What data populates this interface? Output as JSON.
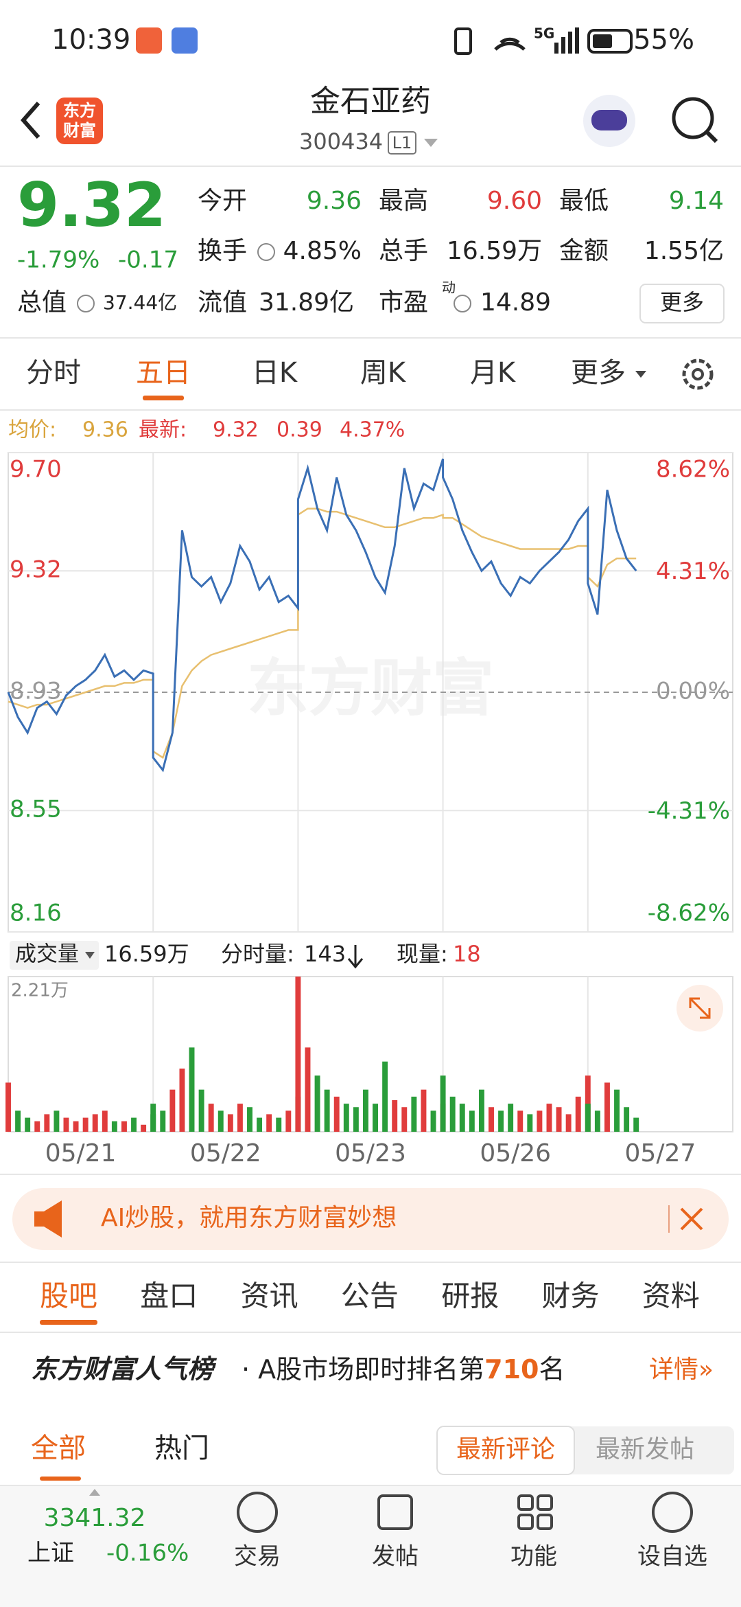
{
  "status_bar": {
    "time": "10:39",
    "network": "5G",
    "battery": "55%"
  },
  "header": {
    "logo": [
      "东方",
      "财富"
    ],
    "title": "金石亚药",
    "code": "300434",
    "level": "L1"
  },
  "quote": {
    "price": "9.32",
    "change_pct": "-1.79%",
    "change": "-0.17",
    "rows": [
      [
        {
          "label": "今开",
          "value": "9.36",
          "color": "#2a9d3a"
        },
        {
          "label": "最高",
          "value": "9.60",
          "color": "#e03c3c"
        },
        {
          "label": "最低",
          "value": "9.14",
          "color": "#2a9d3a"
        }
      ],
      [
        {
          "label": "换手",
          "value": "4.85%"
        },
        {
          "label": "总手",
          "value": "16.59万"
        },
        {
          "label": "金额",
          "value": "1.55亿"
        }
      ],
      [
        {
          "label": "总值",
          "value": "37.44亿"
        },
        {
          "label": "流值",
          "value": "31.89亿"
        },
        {
          "label": "市盈",
          "sup": "动",
          "value": "14.89"
        }
      ]
    ],
    "more_button": "更多"
  },
  "tabs": [
    "分时",
    "五日",
    "日K",
    "周K",
    "月K",
    "更多"
  ],
  "chart_data": [
    {
      "type": "line",
      "watermark": "东方财富",
      "legend": [
        {
          "label": "均价:",
          "value": 9.36,
          "color": "#d9a43c"
        },
        {
          "label": "最新:",
          "value": 9.32,
          "color": "#e03c3c"
        },
        {
          "value": 0.39,
          "color": "#e03c3c"
        },
        {
          "value": {
            "value": 4.37,
            "label": "4.37%"
          },
          "color": "#e03c3c"
        }
      ],
      "ylim": [
        8.16,
        9.7
      ],
      "yticks": [
        {
          "value": 9.7,
          "label": "9.70"
        },
        9.32,
        8.93,
        8.55,
        8.16
      ],
      "y2lim": [
        -8.62,
        8.62
      ],
      "y2ticks": [
        {
          "value": 8.62,
          "label": "8.62%"
        },
        {
          "value": 4.31,
          "label": "4.31%"
        },
        {
          "value": 0,
          "label": "0.00%"
        },
        {
          "value": -4.31,
          "label": "-4.31%"
        },
        {
          "value": -8.62,
          "label": "-8.62%"
        }
      ],
      "grid": true,
      "up_color": "#e03c3c",
      "down_color": "#2a9d3a",
      "series": [
        {
          "color": "#3a6fb5",
          "values": [
            [
              8.93,
              8.85,
              8.8,
              8.88,
              8.9,
              8.86,
              8.92,
              8.95,
              8.97,
              9.0,
              9.05,
              8.98,
              9.0,
              8.97,
              9.0,
              8.99
            ],
            [
              8.72,
              8.68,
              8.8,
              9.45,
              9.3,
              9.27,
              9.3,
              9.22,
              9.28,
              9.4,
              9.35,
              9.26,
              9.3,
              9.22,
              9.24,
              9.2
            ],
            [
              9.55,
              9.65,
              9.52,
              9.45,
              9.62,
              9.5,
              9.45,
              9.38,
              9.3,
              9.25,
              9.4,
              9.65,
              9.52,
              9.6,
              9.58,
              9.68
            ],
            [
              9.62,
              9.55,
              9.45,
              9.38,
              9.32,
              9.35,
              9.28,
              9.24,
              9.3,
              9.28,
              9.32,
              9.35,
              9.38,
              9.42,
              9.48,
              9.52
            ],
            [
              9.28,
              9.18,
              9.58,
              9.45,
              9.36,
              9.32
            ]
          ]
        },
        {
          "color": "#e8c070",
          "values": [
            [
              8.9,
              8.89,
              8.88,
              8.89,
              8.89,
              8.9,
              8.91,
              8.92,
              8.93,
              8.94,
              8.95,
              8.95,
              8.96,
              8.96,
              8.97,
              8.97
            ],
            [
              8.74,
              8.72,
              8.8,
              8.95,
              9.0,
              9.03,
              9.05,
              9.06,
              9.07,
              9.08,
              9.09,
              9.1,
              9.11,
              9.12,
              9.13,
              9.13
            ],
            [
              9.5,
              9.52,
              9.52,
              9.51,
              9.51,
              9.5,
              9.49,
              9.48,
              9.47,
              9.46,
              9.46,
              9.47,
              9.48,
              9.49,
              9.49,
              9.5
            ],
            [
              9.49,
              9.49,
              9.47,
              9.45,
              9.43,
              9.42,
              9.41,
              9.4,
              9.39,
              9.39,
              9.39,
              9.39,
              9.39,
              9.39,
              9.4,
              9.4
            ],
            [
              9.3,
              9.27,
              9.34,
              9.36,
              9.36,
              9.36
            ]
          ]
        }
      ]
    },
    {
      "type": "bar",
      "categories": [
        "05/21",
        "05/22",
        "05/23",
        "05/26",
        "05/27"
      ],
      "ylim": [
        0,
        22100
      ],
      "yticks": [
        {
          "value": 22100,
          "label": "2.21万"
        }
      ],
      "values": [
        [
          7000,
          3000,
          2000,
          1500,
          2500,
          3000,
          2000,
          1500,
          2000,
          2500,
          3000,
          1500,
          1500,
          2000,
          1000,
          2500
        ],
        [
          4000,
          3000,
          6000,
          9000,
          12000,
          6000,
          4000,
          3000,
          2500,
          4000,
          3500,
          2000,
          2500,
          2000,
          3000,
          5000
        ],
        [
          22100,
          12000,
          8000,
          6000,
          5000,
          4000,
          3500,
          6000,
          4000,
          10000,
          4500,
          3500,
          5000,
          6000,
          3000,
          4000
        ],
        [
          8000,
          5000,
          4000,
          3000,
          6000,
          3500,
          3000,
          4000,
          3000,
          2500,
          3000,
          4000,
          3500,
          2500,
          5000,
          8000
        ],
        [
          4000,
          3000,
          7000,
          6000,
          3500,
          2000
        ]
      ]
    }
  ],
  "volume_header": {
    "label": "成交量",
    "total": "16.59万",
    "minute_label": "分时量:",
    "minute_value": "143",
    "current_label": "现量:",
    "current_value": "18"
  },
  "banner": "AI炒股，就用东方财富妙想",
  "section_tabs": [
    "股吧",
    "盘口",
    "资讯",
    "公告",
    "研报",
    "财务",
    "资料"
  ],
  "ranking": {
    "title": "东方财富人气榜",
    "prefix": "· A股市场即时排名第",
    "rank": "710",
    "suffix": "名",
    "link": "详情»"
  },
  "filters": {
    "left": [
      "全部",
      "热门"
    ],
    "right": [
      "最新评论",
      "最新发帖"
    ]
  },
  "bottom_nav": {
    "index_value": "3341.32",
    "index_name": "上证",
    "index_change": "-0.16%",
    "items": [
      "交易",
      "发帖",
      "功能",
      "设自选"
    ]
  }
}
